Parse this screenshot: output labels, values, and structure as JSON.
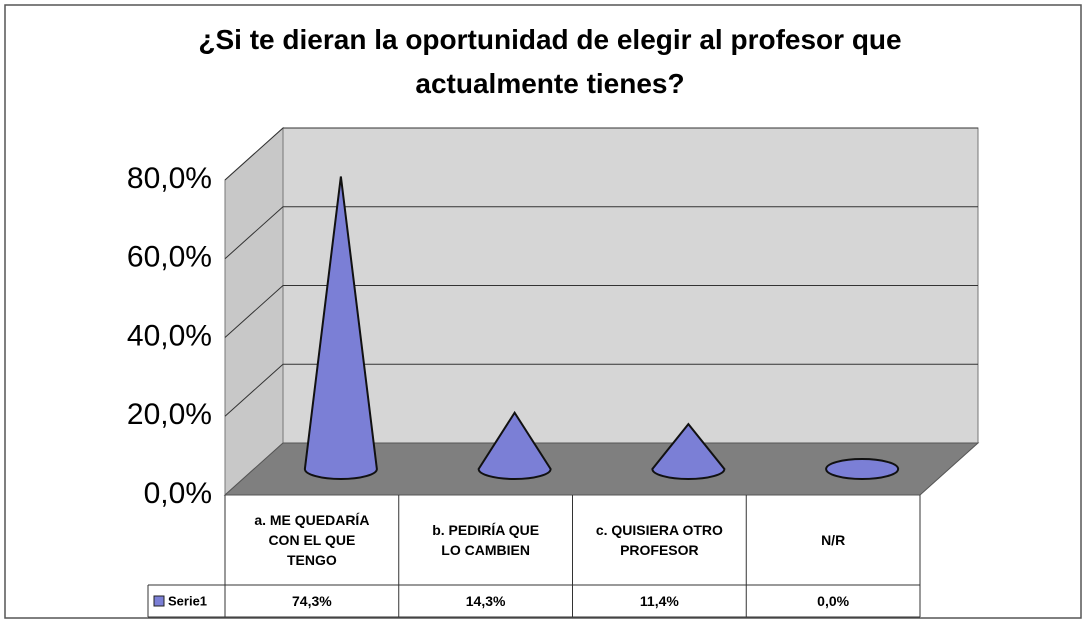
{
  "chart_data": {
    "type": "cone",
    "title": "¿Si te dieran la oportunidad de elegir al profesor que actualmente tienes?",
    "categories": [
      "a. ME QUEDARÍA CON EL QUE TENGO",
      "b. PEDIRÍA QUE LO CAMBIEN",
      "c. QUISIERA OTRO PROFESOR",
      "N/R"
    ],
    "series": [
      {
        "name": "Serie1",
        "color": "#7b7fd6",
        "values": [
          74.3,
          14.3,
          11.4,
          0.0
        ],
        "value_labels": [
          "74,3%",
          "14,3%",
          "11,4%",
          "0,0%"
        ]
      }
    ],
    "ylim": [
      0,
      80
    ],
    "yticks": [
      {
        "value": 0,
        "label": "0,0%"
      },
      {
        "value": 20,
        "label": "20,0%"
      },
      {
        "value": 40,
        "label": "40,0%"
      },
      {
        "value": 60,
        "label": "60,0%"
      },
      {
        "value": 80,
        "label": "80,0%"
      }
    ],
    "grid": true
  }
}
